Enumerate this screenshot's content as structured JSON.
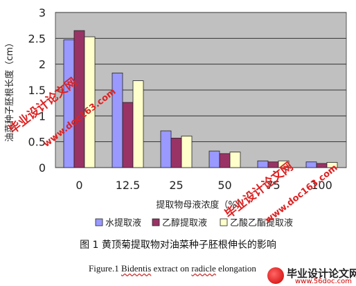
{
  "chart_data": {
    "type": "bar",
    "title": "",
    "xlabel": "提取物母液浓度（%）",
    "ylabel": "油菜种子胚根长度（cm）",
    "categories": [
      "0",
      "12.5",
      "25",
      "50",
      "75",
      "100"
    ],
    "ylim": [
      0,
      3
    ],
    "yticks": [
      "0",
      "0.5",
      "1",
      "1.5",
      "2",
      "2.5",
      "3"
    ],
    "grid": true,
    "legend_position": "bottom",
    "series": [
      {
        "name": "水提取液",
        "color": "#9999ff",
        "values": [
          2.47,
          1.83,
          0.71,
          0.32,
          0.13,
          0.11
        ]
      },
      {
        "name": "乙醇提取液",
        "color": "#993366",
        "values": [
          2.65,
          1.26,
          0.57,
          0.27,
          0.11,
          0.08
        ]
      },
      {
        "name": "乙酸乙酯提取液",
        "color": "#ffffcc",
        "values": [
          2.53,
          1.68,
          0.61,
          0.3,
          0.13,
          0.1
        ]
      }
    ],
    "plot_background": "#c0c0c0"
  },
  "captions": {
    "chinese": "图  1  黄顶菊提取物对油菜种子胚根伸长的影响",
    "english_prefix": "Figure.1 ",
    "english_u1": "Bidentis",
    "english_mid": " extract on ",
    "english_u2": "radicle",
    "english_suffix": " elongation"
  },
  "watermarks": {
    "text_cn": "毕业设计论文网",
    "url": "www.doc163.com"
  },
  "logo": {
    "main": "毕业设计论文网",
    "url": "www.56doc.com"
  }
}
